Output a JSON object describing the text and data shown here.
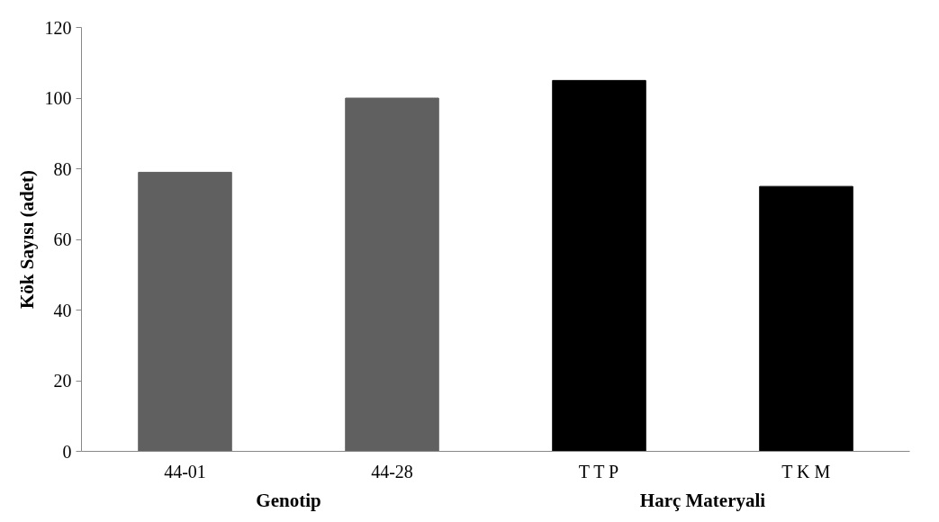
{
  "chart_data": {
    "type": "bar",
    "ylabel": "Kök Sayısı (adet)",
    "categories": [
      "44-01",
      "44-28",
      "T T P",
      "T K M"
    ],
    "values": [
      79,
      100,
      105,
      75
    ],
    "colors": [
      "#606060",
      "#606060",
      "#000000",
      "#000000"
    ],
    "annotations": [
      "Genotip",
      "Harç Materyali"
    ],
    "ylim": [
      0,
      120
    ],
    "yticks": [
      0,
      20,
      40,
      60,
      80,
      100,
      120
    ],
    "grid": false
  }
}
